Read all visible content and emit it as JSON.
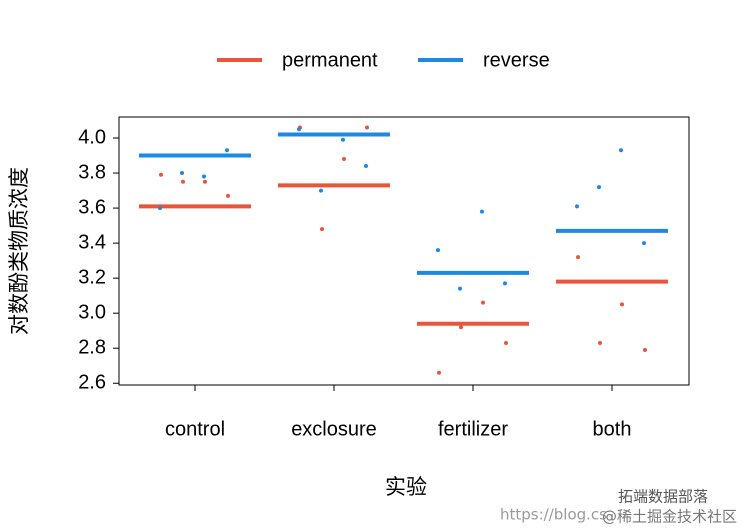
{
  "chart_data": {
    "type": "strip",
    "x_label": "实验",
    "y_label": "对数酚类物质浓度",
    "categories": [
      "control",
      "exclosure",
      "fertilizer",
      "both"
    ],
    "series": [
      {
        "name": "permanent",
        "color": "#e8553a",
        "values": [
          3.61,
          3.73,
          2.94,
          3.18
        ],
        "points": [
          [
            3.79,
            3.75,
            3.75,
            3.67
          ],
          [
            4.06,
            3.48,
            3.88,
            4.06
          ],
          [
            2.66,
            2.92,
            3.06,
            2.83
          ],
          [
            3.32,
            2.83,
            3.05,
            2.79
          ]
        ]
      },
      {
        "name": "reverse",
        "color": "#1e88e5",
        "values": [
          3.9,
          4.02,
          3.23,
          3.47
        ],
        "points": [
          [
            3.6,
            3.8,
            3.78,
            3.93
          ],
          [
            4.05,
            3.7,
            3.99,
            3.84
          ],
          [
            3.36,
            3.14,
            3.58,
            3.17
          ],
          [
            3.61,
            3.72,
            3.93,
            3.4
          ]
        ]
      }
    ],
    "ylim": [
      2.59,
      4.12
    ],
    "yticks": [
      2.6,
      2.8,
      {
        "value": 3,
        "label": "3.0"
      },
      3.2,
      3.4,
      3.6,
      3.8,
      {
        "value": 4,
        "label": "4.0"
      }
    ],
    "legend": "top"
  },
  "watermark": [
    "拓端数据部落",
    "@稀土掘金技术社区",
    "https://blog.cs"
  ]
}
